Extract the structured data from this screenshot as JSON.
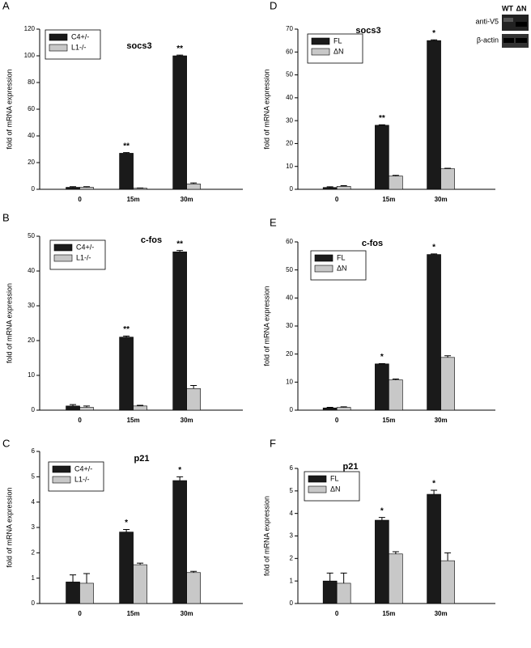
{
  "chart_data": [
    {
      "type": "bar",
      "panel": "A",
      "title": "socs3",
      "ylabel": "fold of mRNA expression",
      "categories": [
        "0",
        "15m",
        "30m"
      ],
      "legend": "upper left",
      "series": [
        {
          "name": "C4+/-",
          "color": "#1a1a1a",
          "values": [
            1.5,
            27,
            100
          ],
          "errors": [
            0.5,
            0.5,
            0.5
          ],
          "annotations": [
            null,
            "**",
            "**"
          ]
        },
        {
          "name": "L1-/-",
          "color": "#c8c8c8",
          "values": [
            1.5,
            0.8,
            4
          ],
          "errors": [
            0.5,
            0.2,
            0.8
          ]
        }
      ],
      "ylim": [
        0,
        120
      ],
      "yticks": [
        0,
        20,
        40,
        60,
        80,
        100,
        120
      ]
    },
    {
      "type": "bar",
      "panel": "B",
      "title": "c-fos",
      "ylabel": "fold of mRNA expression",
      "categories": [
        "0",
        "15m",
        "30m"
      ],
      "legend": "upper left",
      "series": [
        {
          "name": "C4+/-",
          "color": "#1a1a1a",
          "values": [
            1.2,
            21,
            45.5
          ],
          "errors": [
            0.4,
            0.3,
            0.4
          ],
          "annotations": [
            null,
            "**",
            "**"
          ]
        },
        {
          "name": "L1-/-",
          "color": "#c8c8c8",
          "values": [
            0.8,
            1.2,
            6.2
          ],
          "errors": [
            0.4,
            0.2,
            0.9
          ]
        }
      ],
      "ylim": [
        0,
        50
      ],
      "yticks": [
        0,
        10,
        20,
        30,
        40,
        50
      ]
    },
    {
      "type": "bar",
      "panel": "C",
      "title": "p21",
      "ylabel": "fold of mRNA expression",
      "categories": [
        "0",
        "15m",
        "30m"
      ],
      "legend": "upper left",
      "series": [
        {
          "name": "C4+/-",
          "color": "#1a1a1a",
          "values": [
            0.85,
            2.82,
            4.85
          ],
          "errors": [
            0.28,
            0.1,
            0.15
          ],
          "annotations": [
            null,
            "*",
            "*"
          ]
        },
        {
          "name": "L1-/-",
          "color": "#c8c8c8",
          "values": [
            0.8,
            1.53,
            1.22
          ],
          "errors": [
            0.38,
            0.06,
            0.05
          ]
        }
      ],
      "ylim": [
        0,
        6
      ],
      "yticks": [
        0,
        1,
        2,
        3,
        4,
        5,
        6
      ]
    },
    {
      "type": "bar",
      "panel": "D",
      "title": "socs3",
      "ylabel": "fold of mRNA expression",
      "categories": [
        "0",
        "15m",
        "30m"
      ],
      "legend": "upper left",
      "series": [
        {
          "name": "FL",
          "color": "#1a1a1a",
          "values": [
            0.8,
            28,
            65
          ],
          "errors": [
            0.3,
            0.2,
            0.3
          ],
          "annotations": [
            null,
            "**",
            "*"
          ]
        },
        {
          "name": "ΔN",
          "color": "#c8c8c8",
          "values": [
            1.3,
            5.8,
            9
          ],
          "errors": [
            0.3,
            0.3,
            0.2
          ]
        }
      ],
      "ylim": [
        0,
        70
      ],
      "yticks": [
        0,
        10,
        20,
        30,
        40,
        50,
        60,
        70
      ],
      "inset": {
        "lanes": [
          "WT",
          "ΔN"
        ],
        "rows": [
          "anti-V5",
          "β-actin"
        ]
      }
    },
    {
      "type": "bar",
      "panel": "E",
      "title": "c-fos",
      "ylabel": "fold of mRNA expression",
      "categories": [
        "0",
        "15m",
        "30m"
      ],
      "legend": "upper left",
      "series": [
        {
          "name": "FL",
          "color": "#1a1a1a",
          "values": [
            0.8,
            16.5,
            55.5
          ],
          "errors": [
            0.2,
            0.1,
            0.2
          ],
          "annotations": [
            null,
            "*",
            "*"
          ]
        },
        {
          "name": "ΔN",
          "color": "#c8c8c8",
          "values": [
            1.0,
            10.8,
            18.8
          ],
          "errors": [
            0.2,
            0.3,
            0.6
          ]
        }
      ],
      "ylim": [
        0,
        60
      ],
      "yticks": [
        0,
        10,
        20,
        30,
        40,
        50,
        60
      ]
    },
    {
      "type": "bar",
      "panel": "F",
      "title": "p21",
      "ylabel": "fold of mRNA expression",
      "categories": [
        "0",
        "15m",
        "30m"
      ],
      "legend": "upper left",
      "series": [
        {
          "name": "FL",
          "color": "#1a1a1a",
          "values": [
            1.0,
            3.7,
            4.85
          ],
          "errors": [
            0.35,
            0.12,
            0.18
          ],
          "annotations": [
            null,
            "*",
            "*"
          ]
        },
        {
          "name": "ΔN",
          "color": "#c8c8c8",
          "values": [
            0.9,
            2.2,
            1.9
          ],
          "errors": [
            0.45,
            0.1,
            0.35
          ]
        }
      ],
      "ylim": [
        0,
        6
      ],
      "yticks": [
        0,
        1,
        2,
        3,
        4,
        5,
        6
      ]
    }
  ]
}
